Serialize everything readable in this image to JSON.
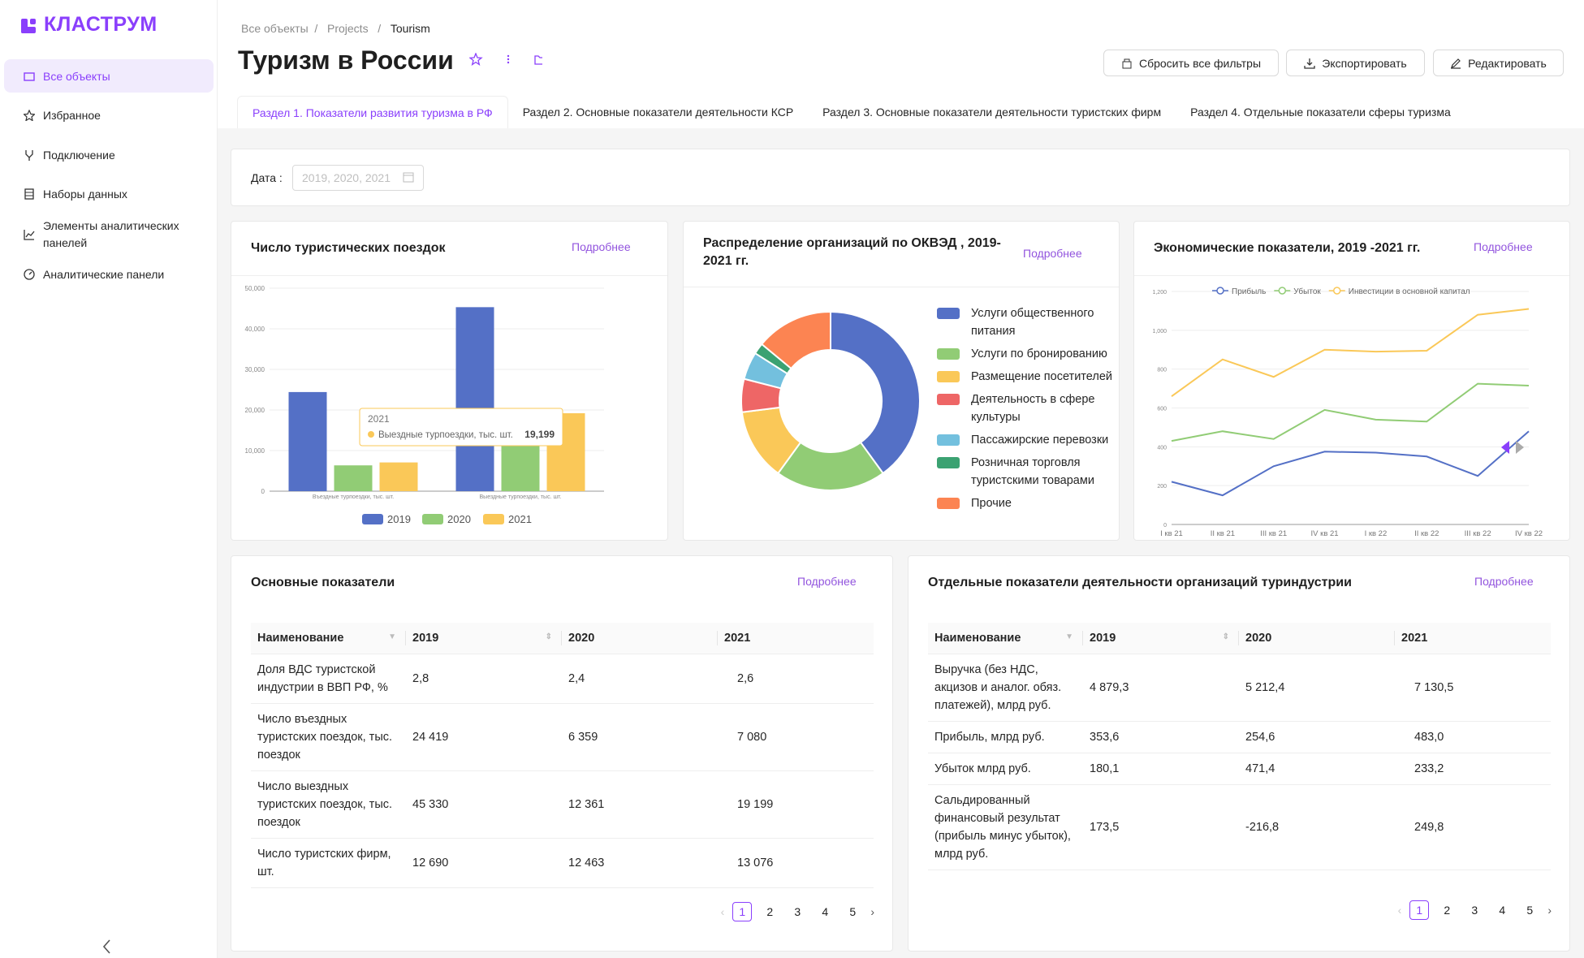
{
  "sidebar": {
    "logo": "КЛАСТРУМ",
    "nav": [
      "Все объекты",
      "Избранное",
      "Подключение",
      "Наборы данных",
      "Элементы аналитических панелей",
      "Аналитические панели"
    ]
  },
  "header": {
    "breadcrumbs": [
      "Все объекты",
      "Projects",
      "Tourism"
    ],
    "title": "Туризм в России",
    "buttons": [
      "Сбросить все фильтры",
      "Экспортировать",
      "Редактировать"
    ]
  },
  "tabs": [
    "Раздел 1. Показатели развития туризма в РФ",
    "Раздел 2. Основные показатели деятельности КСР",
    "Раздел 3. Основные показатели деятельности туристских фирм",
    "Раздел 4. Отдельные показатели сферы туризма"
  ],
  "filter": {
    "label": "Дата :",
    "placeholder": "2019, 2020, 2021"
  },
  "chart_data": [
    {
      "type": "bar",
      "title": "Число туристических поездок",
      "more": "Подробнее",
      "categories": [
        "Въездные турпоездки, тыс. шт.",
        "Выездные турпоездки, тыс. шт."
      ],
      "series": [
        {
          "name": "2019",
          "color": "#5470c6",
          "values": [
            24419,
            45330
          ]
        },
        {
          "name": "2020",
          "color": "#91cc75",
          "values": [
            6359,
            12361
          ]
        },
        {
          "name": "2021",
          "color": "#fac858",
          "values": [
            7080,
            19199
          ]
        }
      ],
      "ylim": [
        0,
        50000
      ],
      "yticks": [
        0,
        {
          "value": 10000,
          "label": "10,000"
        },
        {
          "value": 20000,
          "label": "20,000"
        },
        {
          "value": 30000,
          "label": "30,000"
        },
        {
          "value": 40000,
          "label": "40,000"
        },
        {
          "value": 50000,
          "label": "50,000"
        }
      ],
      "grid": true,
      "tooltip": {
        "series": "2021",
        "category": "Выездные турпоездки, тыс. шт.",
        "value_label": "19,199"
      }
    },
    {
      "type": "pie",
      "title": "Распределение организаций  по ОКВЭД , 2019-2021 гг.",
      "more": "Подробнее",
      "categories": [
        "Услуги общественного питания",
        "Услуги по бронированию",
        "Размещение посетителей",
        "Деятельность в сфере культуры",
        "Пассажирские перевозки",
        "Розничная торговля туристскими товарами",
        "Прочие"
      ],
      "values": [
        40,
        20,
        13,
        6,
        5,
        2,
        14
      ],
      "colors": [
        "#5470c6",
        "#91cc75",
        "#fac858",
        "#ee6666",
        "#73c0de",
        "#3ba272",
        "#fc8452"
      ]
    },
    {
      "type": "line",
      "title": "Экономические показатели, 2019 -2021 гг.",
      "more": "Подробнее",
      "categories": [
        "I кв 21",
        "II кв 21",
        "III кв 21",
        "IV кв 21",
        "I кв 22",
        "II кв 22",
        "III кв 22",
        "IV кв 22"
      ],
      "series": [
        {
          "name": "Прибыль",
          "color": "#5470c6",
          "values": [
            220,
            150,
            300,
            375,
            370,
            350,
            250,
            480
          ]
        },
        {
          "name": "Убыток",
          "color": "#91cc75",
          "values": [
            430,
            480,
            440,
            590,
            540,
            530,
            725,
            715
          ]
        },
        {
          "name": "Инвестиции в основной капитал",
          "color": "#fac858",
          "values": [
            660,
            850,
            760,
            900,
            890,
            895,
            1080,
            1110
          ]
        }
      ],
      "ylim": [
        0,
        1200
      ],
      "yticks": [
        0,
        200,
        400,
        600,
        800,
        {
          "value": 1000,
          "label": "1,000"
        },
        {
          "value": 1200,
          "label": "1,200"
        }
      ],
      "grid": true
    }
  ],
  "tables": [
    {
      "title": "Основные показатели",
      "more": "Подробнее",
      "headers": [
        "Наименование",
        "2019",
        "2020",
        "2021"
      ],
      "rows": [
        [
          "Доля ВДС туристской индустрии в ВВП РФ, %",
          "2,8",
          "2,4",
          "2,6"
        ],
        [
          "Число въездных туристских поездок, тыс. поездок",
          "24 419",
          "6 359",
          "7 080"
        ],
        [
          "Число выездных туристских поездок, тыс. поездок",
          "45 330",
          "12 361",
          "19 199"
        ],
        [
          "Число туристских фирм, шт.",
          "12 690",
          "12 463",
          "13 076"
        ]
      ],
      "pages": [
        1,
        2,
        3,
        4,
        5
      ]
    },
    {
      "title": "Отдельные показатели деятельности организаций туриндустрии",
      "more": "Подробнее",
      "headers": [
        "Наименование",
        "2019",
        "2020",
        "2021"
      ],
      "rows": [
        [
          "Выручка (без НДС, акцизов и аналог. обяз. платежей), млрд руб.",
          "4 879,3",
          "5 212,4",
          "7 130,5"
        ],
        [
          "Прибыль, млрд руб.",
          "353,6",
          "254,6",
          "483,0"
        ],
        [
          "Убыток млрд руб.",
          "180,1",
          "471,4",
          "233,2"
        ],
        [
          "Сальдированный финансовый результат (прибыль минус убыток), млрд руб.",
          "173,5",
          "-216,8",
          "249,8"
        ]
      ],
      "pages": [
        1,
        2,
        3,
        4,
        5
      ]
    }
  ]
}
